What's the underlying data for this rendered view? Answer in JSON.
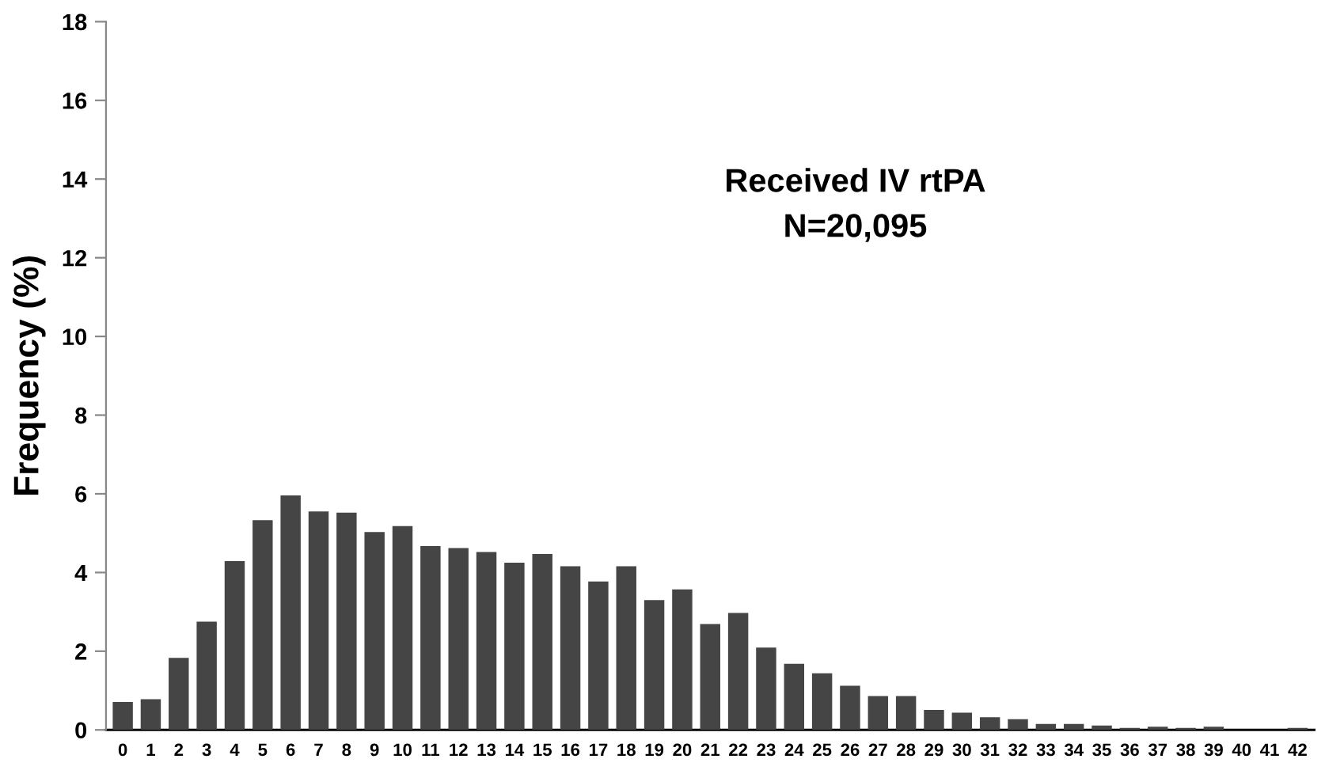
{
  "chart_data": {
    "type": "bar",
    "ylabel": "Frequency (%)",
    "annotations": [
      "Received IV rtPA\nN=20,095"
    ],
    "categories": [
      "0",
      "1",
      "2",
      "3",
      "4",
      "5",
      "6",
      "7",
      "8",
      "9",
      "10",
      "11",
      "12",
      "13",
      "14",
      "15",
      "16",
      "17",
      "18",
      "19",
      "20",
      "21",
      "22",
      "23",
      "24",
      "25",
      "26",
      "27",
      "28",
      "29",
      "30",
      "31",
      "32",
      "33",
      "34",
      "35",
      "36",
      "37",
      "38",
      "39",
      "40",
      "41",
      "42"
    ],
    "values": [
      0.71,
      0.78,
      1.83,
      2.75,
      4.29,
      5.33,
      5.96,
      5.55,
      5.52,
      5.03,
      5.18,
      4.67,
      4.62,
      4.52,
      4.25,
      4.47,
      4.16,
      3.77,
      4.16,
      3.3,
      3.57,
      2.69,
      2.97,
      2.09,
      1.68,
      1.44,
      1.12,
      0.86,
      0.86,
      0.51,
      0.44,
      0.32,
      0.27,
      0.15,
      0.15,
      0.11,
      0.05,
      0.08,
      0.05,
      0.08,
      0,
      0,
      0.05
    ],
    "color": "#454545",
    "ylim": [
      0,
      18
    ],
    "yticks": [
      0,
      2,
      4,
      6,
      8,
      10,
      12,
      14,
      16,
      18
    ],
    "grid": false
  }
}
